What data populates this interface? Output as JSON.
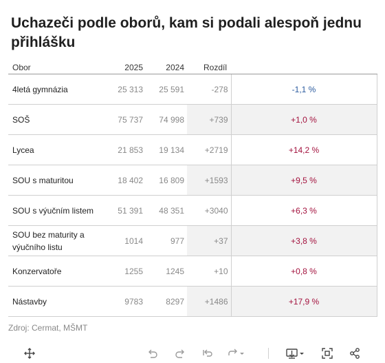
{
  "title": "Uchazeči podle oborů, kam si podali alespoň jednu přihlášku",
  "table": {
    "headers": {
      "name": "Obor",
      "y2025": "2025",
      "y2024": "2024",
      "diff": "Rozdíl",
      "pct": ""
    },
    "rows": [
      {
        "name": "4letá gymnázia",
        "y2025": "25 313",
        "y2024": "25 591",
        "diff": "-278",
        "pct": "-1,1 %"
      },
      {
        "name": "SOŠ",
        "y2025": "75 737",
        "y2024": "74 998",
        "diff": "+739",
        "pct": "+1,0 %"
      },
      {
        "name": "Lycea",
        "y2025": "21 853",
        "y2024": "19 134",
        "diff": "+2719",
        "pct": "+14,2 %"
      },
      {
        "name": "SOU s maturitou",
        "y2025": "18 402",
        "y2024": "16 809",
        "diff": "+1593",
        "pct": "+9,5 %"
      },
      {
        "name": "SOU s výučním listem",
        "y2025": "51 391",
        "y2024": "48 351",
        "diff": "+3040",
        "pct": "+6,3 %"
      },
      {
        "name": "SOU bez maturity a výučního listu",
        "y2025": "1014",
        "y2024": "977",
        "diff": "+37",
        "pct": "+3,8 %"
      },
      {
        "name": "Konzervatoře",
        "y2025": "1255",
        "y2024": "1245",
        "diff": "+10",
        "pct": "+0,8 %"
      },
      {
        "name": "Nástavby",
        "y2025": "9783",
        "y2024": "8297",
        "diff": "+1486",
        "pct": "+17,9 %"
      }
    ]
  },
  "colors": {
    "positive": "#a3123e",
    "negative": "#2a5a9e",
    "shade": "#f2f2f2"
  },
  "source": "Zdroj: Cermat, MŠMT",
  "toolbar": {
    "icons": [
      "move-icon",
      "undo-icon",
      "redo-icon",
      "revert-icon",
      "forward-icon",
      "download-icon",
      "fullscreen-icon",
      "share-icon"
    ]
  }
}
